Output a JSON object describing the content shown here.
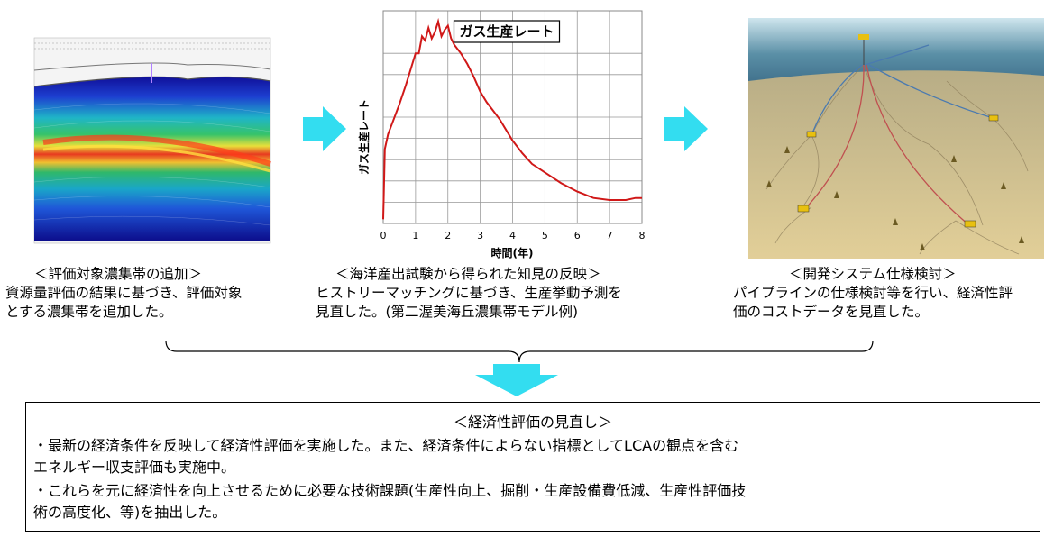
{
  "panels": {
    "seismic": {
      "icon": "seismic-section-image",
      "header": "＜評価対象濃集帯の追加＞",
      "lines": [
        "資源量評価の結果に基づき、評価対象",
        "とする濃集帯を追加した。"
      ]
    },
    "production": {
      "header": "＜海洋産出試験から得られた知見の反映＞",
      "lines": [
        "ヒストリーマッチングに基づき、生産挙動予測を",
        "見直した。(第二渥美海丘濃集帯モデル例)"
      ]
    },
    "development": {
      "icon": "subsea-field-layout-image",
      "header": "＜開発システム仕様検討＞",
      "lines": [
        "パイプラインの仕様検討等を行い、経済性評",
        "価のコストデータを見直した。"
      ]
    }
  },
  "chart_data": {
    "type": "line",
    "title": "ガス生産レート",
    "xlabel": "時間(年)",
    "ylabel": "ガス生産レート",
    "xlim": [
      0,
      8
    ],
    "xticks": [
      "0",
      "1",
      "2",
      "3",
      "4",
      "5",
      "6",
      "7",
      "8"
    ],
    "grid": true,
    "series": [
      {
        "color": "#d01818",
        "x": [
          0,
          0.05,
          0.15,
          0.3,
          0.5,
          0.7,
          0.9,
          1.0,
          1.1,
          1.2,
          1.3,
          1.4,
          1.5,
          1.6,
          1.7,
          1.8,
          1.9,
          2.0,
          2.1,
          2.2,
          2.4,
          2.6,
          2.8,
          3.0,
          3.2,
          3.4,
          3.6,
          3.8,
          4.0,
          4.3,
          4.6,
          5.0,
          5.5,
          6.0,
          6.5,
          7.0,
          7.5,
          7.8,
          8.0
        ],
        "y": [
          0.02,
          0.35,
          0.42,
          0.48,
          0.56,
          0.65,
          0.75,
          0.8,
          0.8,
          0.88,
          0.86,
          0.92,
          0.87,
          0.9,
          0.95,
          0.88,
          0.91,
          0.93,
          0.87,
          0.84,
          0.8,
          0.75,
          0.69,
          0.62,
          0.57,
          0.53,
          0.49,
          0.44,
          0.39,
          0.33,
          0.28,
          0.24,
          0.19,
          0.15,
          0.12,
          0.11,
          0.11,
          0.12,
          0.12
        ]
      }
    ]
  },
  "summary": {
    "title": "＜経済性評価の見直し＞",
    "lines": [
      "・最新の経済条件を反映して経済性評価を実施した。また、経済条件によらない指標としてLCAの観点を含む",
      "エネルギー収支評価も実施中。",
      "・これらを元に経済性を向上させるために必要な技術課題(生産性向上、掘削・生産設備費低減、生産性評価技",
      "術の高度化、等)を抽出した。"
    ]
  },
  "colors": {
    "arrow": "#33ddf0",
    "line": "#d01818",
    "seabed": "#d8c590",
    "sea": "#2f5c7a"
  }
}
